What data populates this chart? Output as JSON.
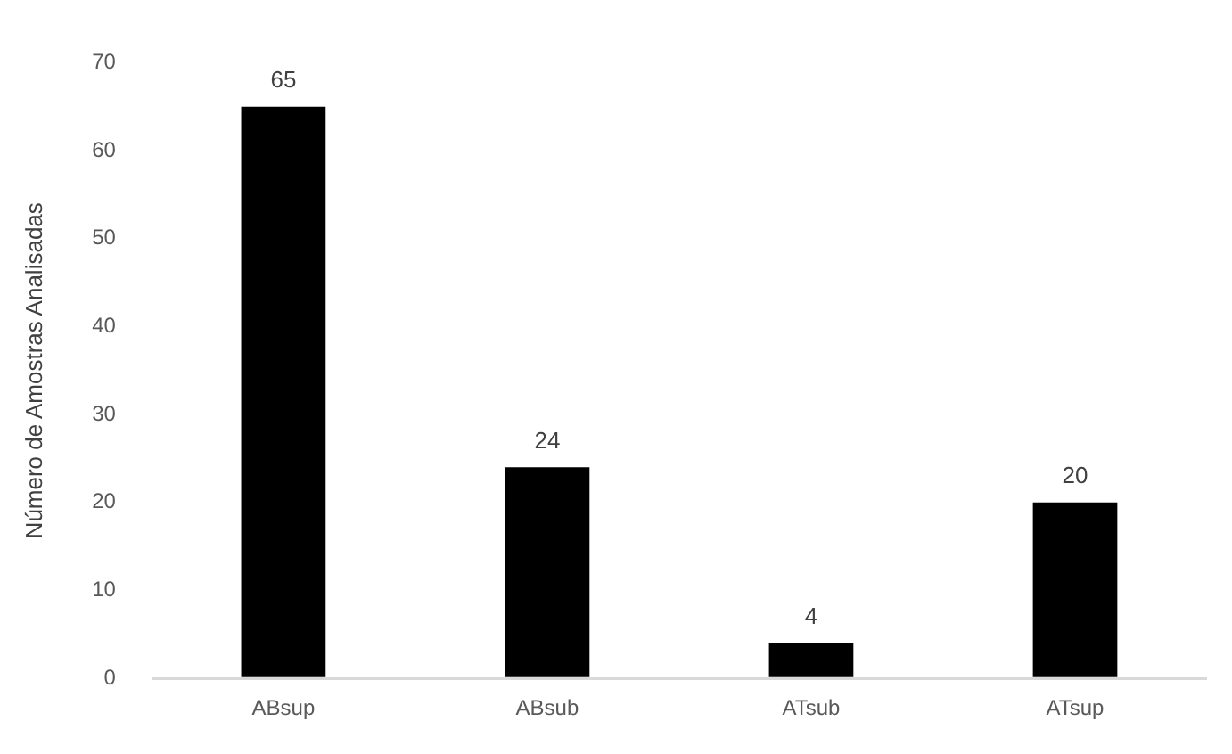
{
  "chart_data": {
    "type": "bar",
    "ylabel": "Número de Amostras Analisadas",
    "categories": [
      "ABsup",
      "ABsub",
      "ATsub",
      "ATsup"
    ],
    "values": [
      65,
      24,
      4,
      20
    ],
    "color": "#000000",
    "ylim": [
      0,
      70
    ],
    "yticks": [
      0,
      10,
      20,
      30,
      40,
      50,
      60,
      70
    ],
    "grid": false,
    "data_labels": true,
    "legend": false
  }
}
